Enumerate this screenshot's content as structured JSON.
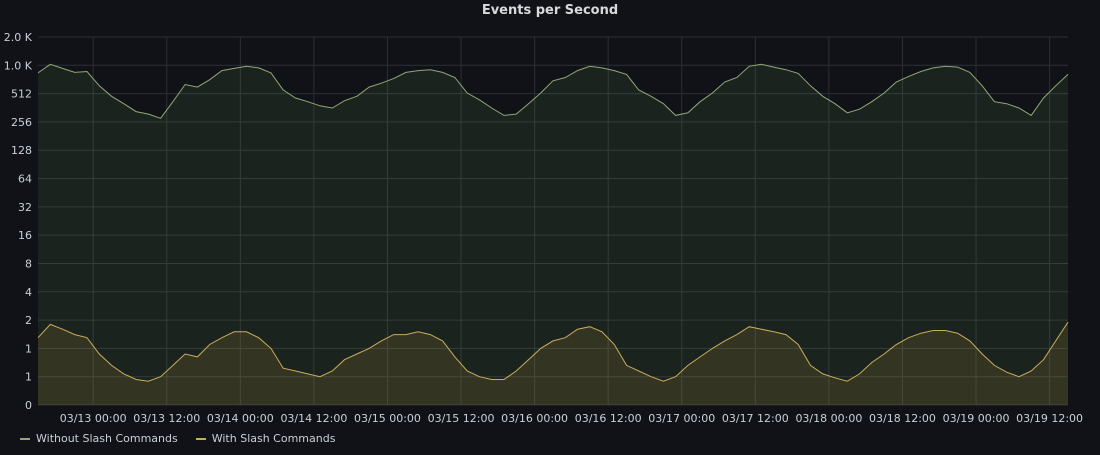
{
  "colors": {
    "background": "#111217",
    "grid": "#2c2f35",
    "axis_text": "#c7d0d9"
  },
  "chart_data": {
    "type": "area",
    "title": "Events per Second",
    "y_scale": "log2",
    "y_ticks": [
      "2.0 K",
      "1.0 K",
      "512",
      "256",
      "128",
      "64",
      "32",
      "16",
      "8",
      "4",
      "2",
      "1",
      "1",
      "0"
    ],
    "x_ticks": [
      "03/13 00:00",
      "03/13 12:00",
      "03/14 00:00",
      "03/14 12:00",
      "03/15 00:00",
      "03/15 12:00",
      "03/16 00:00",
      "03/16 12:00",
      "03/17 00:00",
      "03/17 12:00",
      "03/18 00:00",
      "03/18 12:00",
      "03/19 00:00",
      "03/19 12:00"
    ],
    "x_range_hours": [
      -9,
      159
    ],
    "legend_placement": "bottom-left",
    "series": [
      {
        "name": "Without Slash Commands",
        "color": "#8fa876",
        "fill": "rgba(115,191,105,0.10)",
        "x_hours": [
          -9,
          -7,
          -5,
          -3,
          -1,
          1,
          3,
          5,
          7,
          9,
          11,
          13,
          15,
          17,
          19,
          21,
          23,
          25,
          27,
          29,
          31,
          33,
          35,
          37,
          39,
          41,
          43,
          45,
          47,
          49,
          51,
          53,
          55,
          57,
          59,
          61,
          63,
          65,
          67,
          69,
          71,
          73,
          75,
          77,
          79,
          81,
          83,
          85,
          87,
          89,
          91,
          93,
          95,
          97,
          99,
          101,
          103,
          105,
          107,
          109,
          111,
          113,
          115,
          117,
          119,
          121,
          123,
          125,
          127,
          129,
          131,
          133,
          135,
          137,
          139,
          141,
          143,
          145,
          147,
          149,
          151,
          153,
          155,
          157,
          159
        ],
        "values": [
          850,
          1050,
          950,
          860,
          880,
          620,
          480,
          400,
          330,
          310,
          280,
          420,
          640,
          600,
          720,
          900,
          950,
          1000,
          960,
          850,
          560,
          460,
          420,
          380,
          360,
          430,
          480,
          600,
          660,
          740,
          860,
          900,
          920,
          860,
          760,
          520,
          440,
          360,
          300,
          310,
          400,
          520,
          700,
          760,
          900,
          1000,
          960,
          900,
          820,
          560,
          480,
          400,
          300,
          320,
          420,
          520,
          680,
          760,
          1000,
          1050,
          980,
          920,
          840,
          620,
          480,
          400,
          320,
          350,
          420,
          520,
          680,
          780,
          880,
          960,
          1000,
          980,
          860,
          620,
          420,
          400,
          360,
          300,
          460,
          620,
          820
        ]
      },
      {
        "name": "With Slash Commands",
        "color": "#c9ad5a",
        "fill": "rgba(234,184,57,0.12)",
        "x_hours": [
          -9,
          -7,
          -5,
          -3,
          -1,
          1,
          3,
          5,
          7,
          9,
          11,
          13,
          15,
          17,
          19,
          21,
          23,
          25,
          27,
          29,
          31,
          33,
          35,
          37,
          39,
          41,
          43,
          45,
          47,
          49,
          51,
          53,
          55,
          57,
          59,
          61,
          63,
          65,
          67,
          69,
          71,
          73,
          75,
          77,
          79,
          81,
          83,
          85,
          87,
          89,
          91,
          93,
          95,
          97,
          99,
          101,
          103,
          105,
          107,
          109,
          111,
          113,
          115,
          117,
          119,
          121,
          123,
          125,
          127,
          129,
          131,
          133,
          135,
          137,
          139,
          141,
          143,
          145,
          147,
          149,
          151,
          153,
          155,
          157,
          159
        ],
        "values": [
          1.3,
          1.8,
          1.6,
          1.4,
          1.3,
          0.9,
          0.7,
          0.55,
          0.45,
          0.42,
          0.5,
          0.7,
          0.9,
          0.85,
          1.1,
          1.3,
          1.5,
          1.5,
          1.3,
          1.0,
          0.65,
          0.6,
          0.55,
          0.5,
          0.6,
          0.8,
          0.9,
          1.0,
          1.2,
          1.4,
          1.4,
          1.5,
          1.4,
          1.2,
          0.85,
          0.6,
          0.5,
          0.45,
          0.45,
          0.6,
          0.8,
          1.0,
          1.2,
          1.3,
          1.6,
          1.7,
          1.5,
          1.1,
          0.7,
          0.6,
          0.5,
          0.42,
          0.5,
          0.7,
          0.85,
          1.0,
          1.2,
          1.4,
          1.7,
          1.6,
          1.5,
          1.4,
          1.1,
          0.7,
          0.55,
          0.48,
          0.42,
          0.55,
          0.75,
          0.9,
          1.1,
          1.3,
          1.45,
          1.55,
          1.55,
          1.45,
          1.2,
          0.9,
          0.7,
          0.58,
          0.5,
          0.6,
          0.8,
          1.2,
          1.9
        ]
      }
    ]
  }
}
